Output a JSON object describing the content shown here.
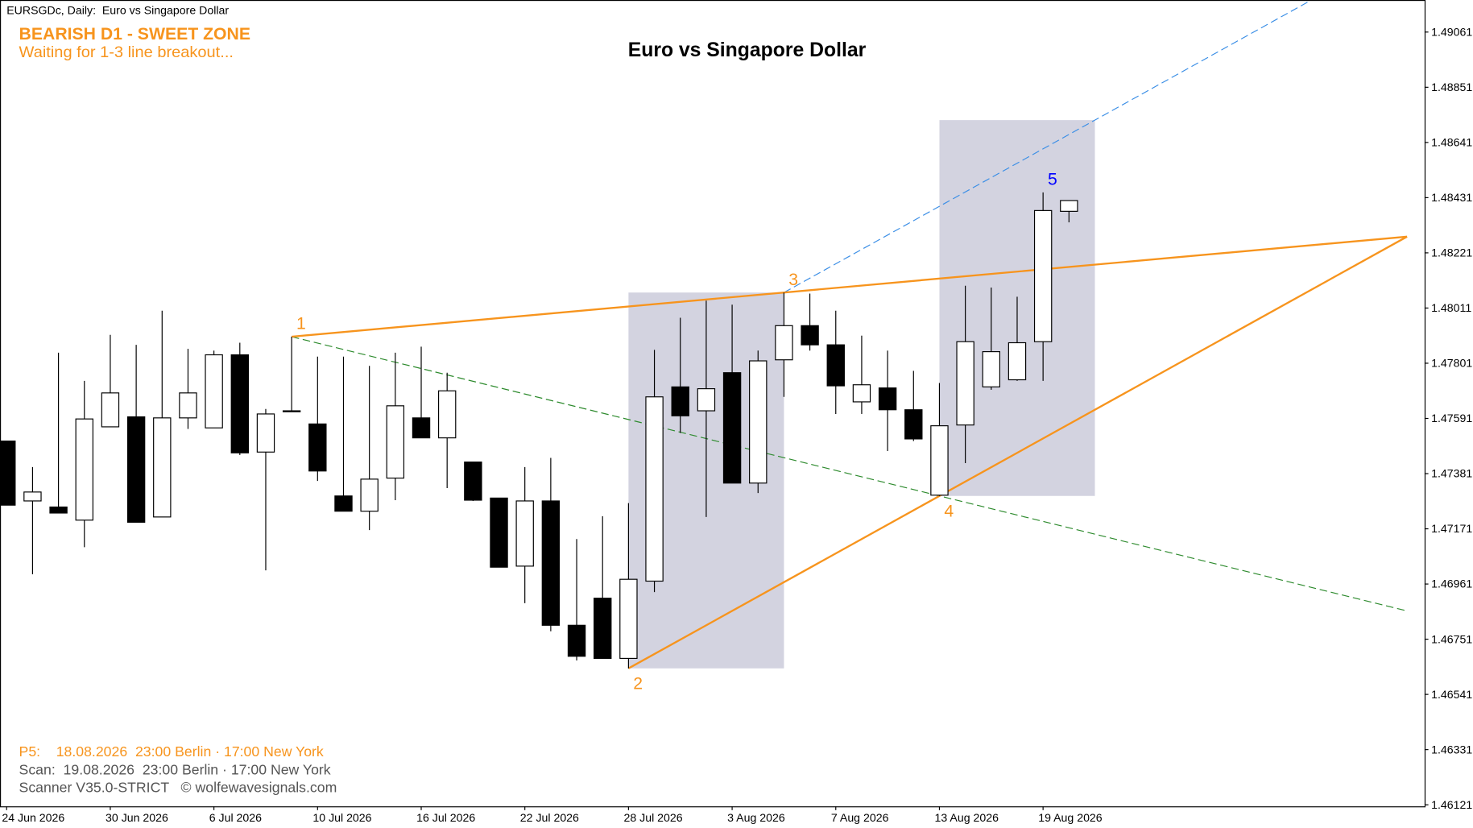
{
  "chart_data": {
    "type": "candlestick",
    "header": "EURSGDc, Daily:  Euro vs Singapore Dollar",
    "title": "Euro vs Singapore Dollar",
    "status": "BEARISH D1 - SWEET ZONE",
    "status_note": "Waiting for 1-3 line breakout...",
    "footer": [
      "P5:    18.08.2026  23:00 Berlin · 17:00 New York",
      "Scan:  19.08.2026  23:00 Berlin · 17:00 New York",
      "Scanner V35.0-STRICT   © wolfewavesignals.com"
    ],
    "categories": [
      "24 Jun 2026",
      null,
      null,
      null,
      "30 Jun 2026",
      null,
      null,
      null,
      "6 Jul 2026",
      null,
      null,
      null,
      "10 Jul 2026",
      null,
      null,
      null,
      "16 Jul 2026",
      null,
      null,
      null,
      "22 Jul 2026",
      null,
      null,
      null,
      "28 Jul 2026",
      null,
      null,
      null,
      "3 Aug 2026",
      null,
      null,
      null,
      "7 Aug 2026",
      null,
      null,
      null,
      "13 Aug 2026",
      null,
      null,
      null,
      "19 Aug 2026",
      null
    ],
    "open": [
      1.47505,
      1.47277,
      1.47254,
      1.47204,
      1.47559,
      1.47597,
      1.47216,
      1.47593,
      1.47555,
      1.47833,
      1.47463,
      1.4762,
      1.4757,
      1.47296,
      1.47238,
      1.47364,
      1.47593,
      1.47517,
      1.47425,
      1.47288,
      1.47029,
      1.47277,
      1.46804,
      1.46907,
      1.46678,
      1.46972,
      1.47711,
      1.4762,
      1.47765,
      1.47345,
      1.47814,
      1.47944,
      1.47871,
      1.47654,
      1.47707,
      1.47624,
      1.47299,
      1.47566,
      1.47711,
      1.47738,
      1.47883,
      1.48379
    ],
    "high": [
      1.47505,
      1.47406,
      1.47841,
      1.47734,
      1.47909,
      1.47871,
      1.48001,
      1.47856,
      1.47849,
      1.47879,
      1.47627,
      1.47902,
      1.47826,
      1.47826,
      1.47791,
      1.47841,
      1.47864,
      1.47765,
      1.47425,
      1.47288,
      1.47406,
      1.47441,
      1.47132,
      1.47219,
      1.47269,
      1.47852,
      1.47974,
      1.48039,
      1.48024,
      1.47849,
      1.4807,
      1.48066,
      1.48001,
      1.47906,
      1.47849,
      1.47772,
      1.47726,
      1.48096,
      1.48089,
      1.48054,
      1.48451,
      1.4842
    ],
    "low": [
      1.47261,
      1.46998,
      1.47231,
      1.47101,
      1.47559,
      1.47196,
      1.47216,
      1.47551,
      1.47555,
      1.47452,
      1.47013,
      1.47616,
      1.47353,
      1.47238,
      1.47166,
      1.4728,
      1.47517,
      1.47326,
      1.47277,
      1.47025,
      1.46888,
      1.46781,
      1.4667,
      1.46678,
      1.4664,
      1.4693,
      1.47536,
      1.47216,
      1.47345,
      1.47307,
      1.47673,
      1.47849,
      1.47608,
      1.47608,
      1.47467,
      1.47505,
      1.47296,
      1.47421,
      1.477,
      1.47734,
      1.47734,
      1.48337
    ],
    "close": [
      1.47261,
      1.47311,
      1.47231,
      1.47589,
      1.47688,
      1.47196,
      1.47593,
      1.47688,
      1.47833,
      1.4746,
      1.47608,
      1.4762,
      1.47391,
      1.47238,
      1.4736,
      1.47639,
      1.47517,
      1.47696,
      1.4728,
      1.47025,
      1.47277,
      1.46804,
      1.46686,
      1.46678,
      1.46979,
      1.47673,
      1.47601,
      1.47704,
      1.47345,
      1.4781,
      1.47944,
      1.47871,
      1.47715,
      1.47719,
      1.47624,
      1.47513,
      1.47563,
      1.47883,
      1.47845,
      1.47879,
      1.48382,
      1.4842
    ],
    "up_color": "#ffffff",
    "down_color": "#000000",
    "points": [
      {
        "label": "1",
        "x": 11,
        "value": 1.47902,
        "color": "#f7941d"
      },
      {
        "label": "2",
        "x": 24,
        "value": 1.4664,
        "color": "#f7941d"
      },
      {
        "label": "3",
        "x": 30,
        "value": 1.4807,
        "color": "#f7941d"
      },
      {
        "label": "4",
        "x": 36,
        "value": 1.47296,
        "color": "#f7941d"
      },
      {
        "label": "5",
        "x": 40,
        "value": 1.48451,
        "color": "#0000ff"
      }
    ],
    "ylim": [
      1.46115,
      1.49183
    ],
    "yticks": [
      1.49061,
      1.48851,
      1.48641,
      1.48431,
      1.48221,
      1.48011,
      1.47801,
      1.47591,
      1.47381,
      1.47171,
      1.46961,
      1.46751,
      1.46541,
      1.46331,
      1.46121
    ],
    "status_color": "#f7941d",
    "footer_colors": [
      "#f7941d",
      "#555555",
      "#555555"
    ]
  }
}
